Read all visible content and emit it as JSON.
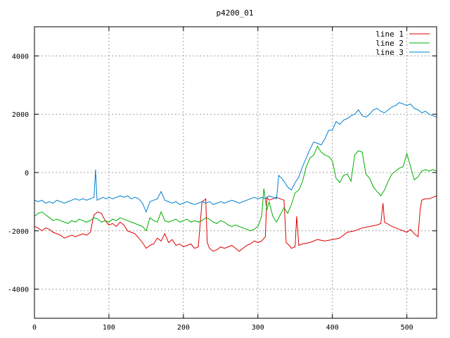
{
  "chart_data": {
    "type": "line",
    "title": "p4200_01",
    "xlabel": "",
    "ylabel": "",
    "xlim": [
      0,
      540
    ],
    "ylim": [
      -5000,
      5000
    ],
    "xticks": [
      0,
      100,
      200,
      300,
      400,
      500
    ],
    "yticks": [
      -4000,
      -2000,
      0,
      2000,
      4000
    ],
    "grid": true,
    "legend_position": "top-right",
    "series": [
      {
        "name": "line 1",
        "color": "#e00000",
        "points": [
          [
            0,
            -1850
          ],
          [
            5,
            -1900
          ],
          [
            10,
            -2000
          ],
          [
            15,
            -1900
          ],
          [
            20,
            -1950
          ],
          [
            25,
            -2050
          ],
          [
            30,
            -2100
          ],
          [
            35,
            -2150
          ],
          [
            40,
            -2250
          ],
          [
            45,
            -2200
          ],
          [
            50,
            -2150
          ],
          [
            55,
            -2200
          ],
          [
            60,
            -2150
          ],
          [
            65,
            -2100
          ],
          [
            70,
            -2150
          ],
          [
            75,
            -2050
          ],
          [
            80,
            -1450
          ],
          [
            85,
            -1350
          ],
          [
            90,
            -1400
          ],
          [
            95,
            -1650
          ],
          [
            100,
            -1800
          ],
          [
            105,
            -1750
          ],
          [
            110,
            -1850
          ],
          [
            115,
            -1700
          ],
          [
            120,
            -1800
          ],
          [
            125,
            -2000
          ],
          [
            130,
            -2050
          ],
          [
            135,
            -2100
          ],
          [
            140,
            -2250
          ],
          [
            145,
            -2400
          ],
          [
            150,
            -2600
          ],
          [
            155,
            -2500
          ],
          [
            160,
            -2450
          ],
          [
            165,
            -2250
          ],
          [
            170,
            -2350
          ],
          [
            175,
            -2100
          ],
          [
            180,
            -2400
          ],
          [
            185,
            -2300
          ],
          [
            190,
            -2500
          ],
          [
            195,
            -2450
          ],
          [
            200,
            -2550
          ],
          [
            205,
            -2500
          ],
          [
            210,
            -2450
          ],
          [
            215,
            -2600
          ],
          [
            220,
            -2550
          ],
          [
            225,
            -1000
          ],
          [
            228,
            -950
          ],
          [
            230,
            -900
          ],
          [
            232,
            -2400
          ],
          [
            235,
            -2600
          ],
          [
            240,
            -2700
          ],
          [
            245,
            -2650
          ],
          [
            250,
            -2550
          ],
          [
            255,
            -2600
          ],
          [
            260,
            -2550
          ],
          [
            265,
            -2500
          ],
          [
            270,
            -2600
          ],
          [
            275,
            -2700
          ],
          [
            280,
            -2600
          ],
          [
            285,
            -2500
          ],
          [
            290,
            -2450
          ],
          [
            295,
            -2350
          ],
          [
            300,
            -2400
          ],
          [
            305,
            -2350
          ],
          [
            310,
            -2200
          ],
          [
            312,
            -850
          ],
          [
            315,
            -950
          ],
          [
            320,
            -900
          ],
          [
            325,
            -850
          ],
          [
            330,
            -900
          ],
          [
            335,
            -950
          ],
          [
            338,
            -2400
          ],
          [
            342,
            -2500
          ],
          [
            345,
            -2600
          ],
          [
            350,
            -2550
          ],
          [
            352,
            -1500
          ],
          [
            355,
            -2500
          ],
          [
            360,
            -2450
          ],
          [
            370,
            -2400
          ],
          [
            380,
            -2300
          ],
          [
            390,
            -2350
          ],
          [
            400,
            -2300
          ],
          [
            410,
            -2250
          ],
          [
            420,
            -2050
          ],
          [
            430,
            -2000
          ],
          [
            440,
            -1900
          ],
          [
            450,
            -1850
          ],
          [
            460,
            -1800
          ],
          [
            465,
            -1750
          ],
          [
            468,
            -1050
          ],
          [
            470,
            -1700
          ],
          [
            480,
            -1850
          ],
          [
            490,
            -1950
          ],
          [
            500,
            -2050
          ],
          [
            505,
            -1950
          ],
          [
            510,
            -2100
          ],
          [
            515,
            -2200
          ],
          [
            518,
            -1250
          ],
          [
            520,
            -950
          ],
          [
            525,
            -900
          ],
          [
            530,
            -900
          ],
          [
            535,
            -850
          ],
          [
            540,
            -800
          ]
        ]
      },
      {
        "name": "line 2",
        "color": "#00b000",
        "points": [
          [
            0,
            -1500
          ],
          [
            5,
            -1400
          ],
          [
            10,
            -1350
          ],
          [
            15,
            -1450
          ],
          [
            20,
            -1550
          ],
          [
            25,
            -1650
          ],
          [
            30,
            -1600
          ],
          [
            35,
            -1650
          ],
          [
            40,
            -1700
          ],
          [
            45,
            -1750
          ],
          [
            50,
            -1650
          ],
          [
            55,
            -1700
          ],
          [
            60,
            -1600
          ],
          [
            65,
            -1650
          ],
          [
            70,
            -1700
          ],
          [
            75,
            -1650
          ],
          [
            80,
            -1550
          ],
          [
            85,
            -1600
          ],
          [
            90,
            -1700
          ],
          [
            95,
            -1650
          ],
          [
            100,
            -1700
          ],
          [
            105,
            -1600
          ],
          [
            110,
            -1650
          ],
          [
            115,
            -1550
          ],
          [
            120,
            -1600
          ],
          [
            125,
            -1650
          ],
          [
            130,
            -1700
          ],
          [
            135,
            -1750
          ],
          [
            140,
            -1800
          ],
          [
            145,
            -1850
          ],
          [
            150,
            -2000
          ],
          [
            155,
            -1550
          ],
          [
            160,
            -1650
          ],
          [
            165,
            -1700
          ],
          [
            170,
            -1350
          ],
          [
            175,
            -1650
          ],
          [
            180,
            -1700
          ],
          [
            185,
            -1650
          ],
          [
            190,
            -1600
          ],
          [
            195,
            -1700
          ],
          [
            200,
            -1650
          ],
          [
            205,
            -1600
          ],
          [
            210,
            -1700
          ],
          [
            215,
            -1650
          ],
          [
            220,
            -1700
          ],
          [
            225,
            -1650
          ],
          [
            230,
            -1550
          ],
          [
            235,
            -1600
          ],
          [
            240,
            -1700
          ],
          [
            245,
            -1750
          ],
          [
            250,
            -1650
          ],
          [
            255,
            -1700
          ],
          [
            260,
            -1800
          ],
          [
            265,
            -1850
          ],
          [
            270,
            -1800
          ],
          [
            275,
            -1850
          ],
          [
            280,
            -1900
          ],
          [
            285,
            -1950
          ],
          [
            290,
            -2000
          ],
          [
            295,
            -1950
          ],
          [
            300,
            -1850
          ],
          [
            305,
            -1500
          ],
          [
            308,
            -550
          ],
          [
            312,
            -1300
          ],
          [
            315,
            -1000
          ],
          [
            320,
            -1500
          ],
          [
            325,
            -1700
          ],
          [
            330,
            -1450
          ],
          [
            335,
            -1200
          ],
          [
            340,
            -1400
          ],
          [
            345,
            -1100
          ],
          [
            350,
            -700
          ],
          [
            355,
            -600
          ],
          [
            360,
            -300
          ],
          [
            365,
            200
          ],
          [
            370,
            500
          ],
          [
            375,
            600
          ],
          [
            380,
            900
          ],
          [
            385,
            700
          ],
          [
            390,
            600
          ],
          [
            395,
            550
          ],
          [
            400,
            400
          ],
          [
            405,
            -200
          ],
          [
            410,
            -350
          ],
          [
            415,
            -100
          ],
          [
            420,
            -50
          ],
          [
            425,
            -300
          ],
          [
            430,
            600
          ],
          [
            435,
            750
          ],
          [
            440,
            700
          ],
          [
            445,
            -50
          ],
          [
            450,
            -200
          ],
          [
            455,
            -500
          ],
          [
            460,
            -650
          ],
          [
            465,
            -800
          ],
          [
            470,
            -600
          ],
          [
            475,
            -300
          ],
          [
            480,
            -50
          ],
          [
            485,
            50
          ],
          [
            490,
            150
          ],
          [
            495,
            200
          ],
          [
            500,
            650
          ],
          [
            505,
            200
          ],
          [
            510,
            -250
          ],
          [
            515,
            -150
          ],
          [
            520,
            50
          ],
          [
            525,
            100
          ],
          [
            530,
            50
          ],
          [
            535,
            100
          ],
          [
            540,
            50
          ]
        ]
      },
      {
        "name": "line 3",
        "color": "#0080d0",
        "points": [
          [
            0,
            -950
          ],
          [
            5,
            -1000
          ],
          [
            10,
            -950
          ],
          [
            15,
            -1050
          ],
          [
            20,
            -1000
          ],
          [
            25,
            -1050
          ],
          [
            30,
            -950
          ],
          [
            35,
            -1000
          ],
          [
            40,
            -1050
          ],
          [
            45,
            -1000
          ],
          [
            50,
            -950
          ],
          [
            55,
            -900
          ],
          [
            60,
            -950
          ],
          [
            65,
            -900
          ],
          [
            70,
            -950
          ],
          [
            75,
            -900
          ],
          [
            80,
            -850
          ],
          [
            82,
            100
          ],
          [
            84,
            -950
          ],
          [
            88,
            -900
          ],
          [
            92,
            -850
          ],
          [
            96,
            -900
          ],
          [
            100,
            -850
          ],
          [
            105,
            -900
          ],
          [
            110,
            -850
          ],
          [
            115,
            -800
          ],
          [
            120,
            -850
          ],
          [
            125,
            -800
          ],
          [
            130,
            -900
          ],
          [
            135,
            -850
          ],
          [
            140,
            -900
          ],
          [
            145,
            -1050
          ],
          [
            150,
            -1350
          ],
          [
            155,
            -1000
          ],
          [
            160,
            -950
          ],
          [
            165,
            -900
          ],
          [
            170,
            -650
          ],
          [
            175,
            -950
          ],
          [
            180,
            -1000
          ],
          [
            185,
            -1050
          ],
          [
            190,
            -1000
          ],
          [
            195,
            -1100
          ],
          [
            200,
            -1050
          ],
          [
            205,
            -1000
          ],
          [
            210,
            -1050
          ],
          [
            215,
            -1100
          ],
          [
            220,
            -1050
          ],
          [
            225,
            -1000
          ],
          [
            230,
            -1050
          ],
          [
            235,
            -1000
          ],
          [
            240,
            -1100
          ],
          [
            245,
            -1050
          ],
          [
            250,
            -1000
          ],
          [
            255,
            -1050
          ],
          [
            260,
            -1000
          ],
          [
            265,
            -950
          ],
          [
            270,
            -1000
          ],
          [
            275,
            -1050
          ],
          [
            280,
            -1000
          ],
          [
            285,
            -950
          ],
          [
            290,
            -900
          ],
          [
            295,
            -850
          ],
          [
            300,
            -900
          ],
          [
            305,
            -850
          ],
          [
            310,
            -900
          ],
          [
            315,
            -800
          ],
          [
            320,
            -850
          ],
          [
            325,
            -900
          ],
          [
            328,
            -100
          ],
          [
            332,
            -200
          ],
          [
            335,
            -300
          ],
          [
            340,
            -500
          ],
          [
            345,
            -600
          ],
          [
            350,
            -350
          ],
          [
            355,
            -150
          ],
          [
            360,
            200
          ],
          [
            365,
            500
          ],
          [
            370,
            800
          ],
          [
            375,
            1050
          ],
          [
            380,
            1000
          ],
          [
            385,
            950
          ],
          [
            390,
            1150
          ],
          [
            395,
            1450
          ],
          [
            400,
            1450
          ],
          [
            405,
            1750
          ],
          [
            410,
            1650
          ],
          [
            415,
            1800
          ],
          [
            420,
            1850
          ],
          [
            425,
            1950
          ],
          [
            430,
            2000
          ],
          [
            435,
            2150
          ],
          [
            440,
            1950
          ],
          [
            445,
            1900
          ],
          [
            450,
            2000
          ],
          [
            455,
            2150
          ],
          [
            460,
            2200
          ],
          [
            465,
            2100
          ],
          [
            470,
            2050
          ],
          [
            475,
            2150
          ],
          [
            480,
            2250
          ],
          [
            485,
            2300
          ],
          [
            490,
            2400
          ],
          [
            495,
            2350
          ],
          [
            500,
            2300
          ],
          [
            505,
            2350
          ],
          [
            510,
            2200
          ],
          [
            515,
            2150
          ],
          [
            520,
            2050
          ],
          [
            525,
            2100
          ],
          [
            530,
            2000
          ],
          [
            535,
            1950
          ],
          [
            540,
            1900
          ]
        ]
      }
    ]
  }
}
